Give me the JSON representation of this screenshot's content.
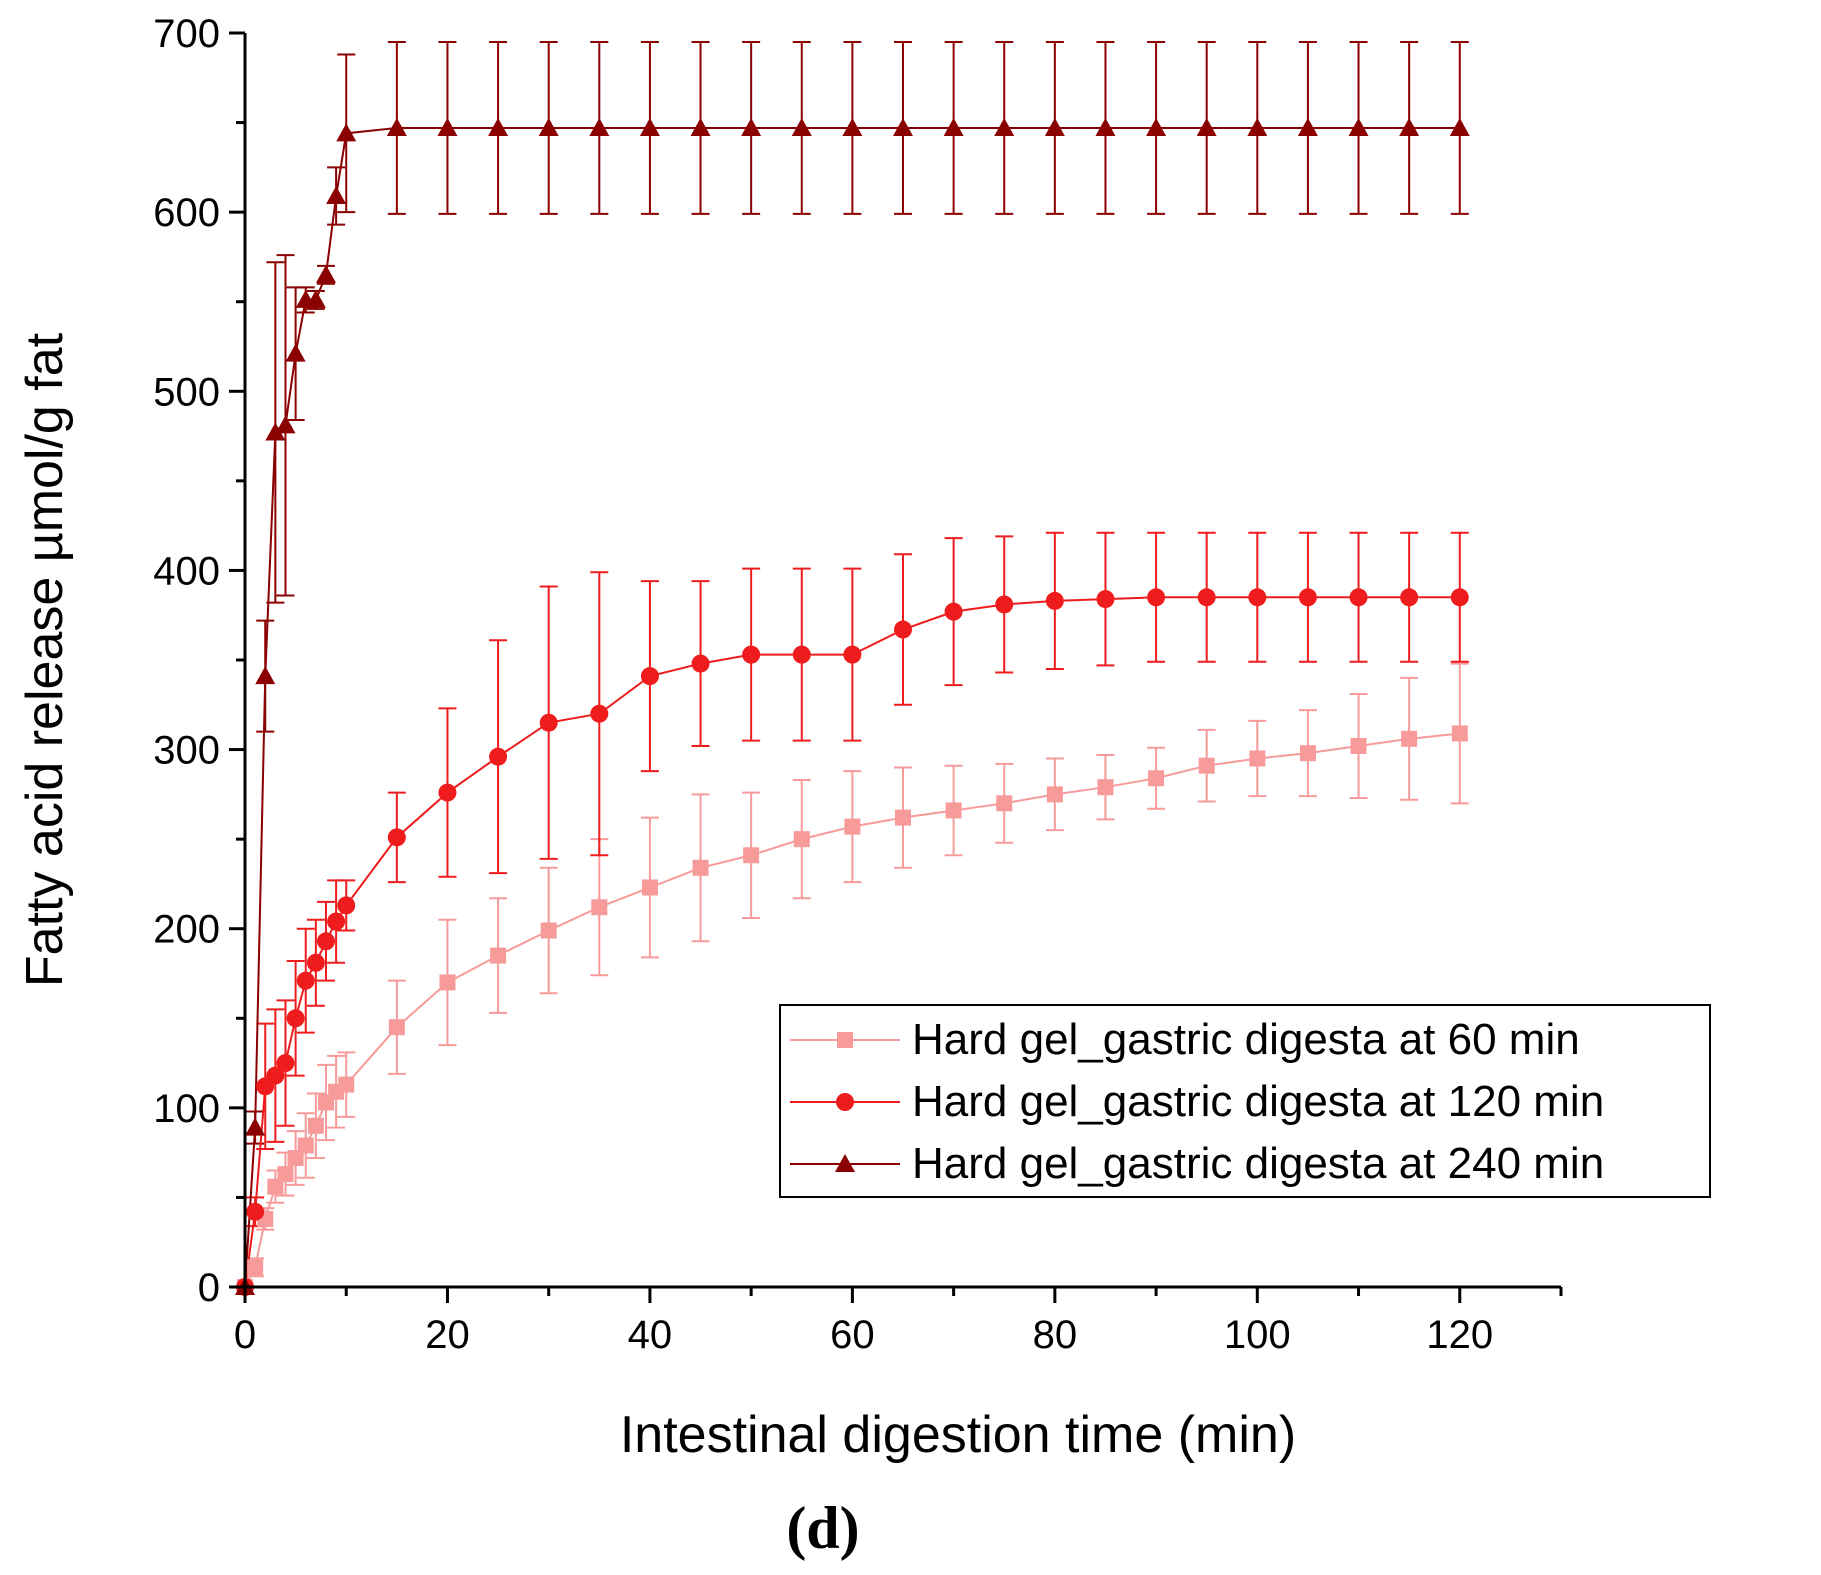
{
  "chart_data": {
    "type": "line",
    "panel_label": "(d)",
    "xlabel": "Intestinal digestion time (min)",
    "ylabel": "Fatty acid release µmol/g fat",
    "xlim": [
      0,
      130
    ],
    "ylim": [
      0,
      700
    ],
    "x_ticks": [
      0,
      20,
      40,
      60,
      80,
      100,
      120
    ],
    "y_ticks": [
      0,
      100,
      200,
      300,
      400,
      500,
      600,
      700
    ],
    "x_tick_labels": [
      "0",
      "20",
      "40",
      "60",
      "80",
      "100",
      "120"
    ],
    "y_tick_labels": [
      "0",
      "100",
      "200",
      "300",
      "400",
      "500",
      "600",
      "700"
    ],
    "grid": false,
    "legend_position": "lower-right",
    "x": [
      0,
      1,
      2,
      3,
      4,
      5,
      6,
      7,
      8,
      9,
      10,
      15,
      20,
      25,
      30,
      35,
      40,
      45,
      50,
      55,
      60,
      65,
      70,
      75,
      80,
      85,
      90,
      95,
      100,
      105,
      110,
      115,
      120
    ],
    "series": [
      {
        "name": "Hard gel_gastric digesta at 60 min",
        "color": "#f79a9a",
        "marker": "square",
        "values": [
          0,
          11,
          38,
          56,
          63,
          72,
          79,
          90,
          103,
          109,
          113,
          145,
          170,
          185,
          199,
          212,
          223,
          234,
          241,
          250,
          257,
          262,
          266,
          270,
          275,
          279,
          284,
          291,
          295,
          298,
          302,
          306,
          309
        ],
        "errors": [
          0,
          5,
          6,
          9,
          12,
          15,
          18,
          18,
          21,
          20,
          18,
          26,
          35,
          32,
          35,
          38,
          39,
          41,
          35,
          33,
          31,
          28,
          25,
          22,
          20,
          18,
          17,
          20,
          21,
          24,
          29,
          34,
          39
        ]
      },
      {
        "name": "Hard gel_gastric digesta at 120 min",
        "color": "#ee1c1c",
        "marker": "circle",
        "values": [
          0,
          42,
          112,
          118,
          125,
          150,
          171,
          181,
          193,
          204,
          213,
          251,
          276,
          296,
          315,
          320,
          341,
          348,
          353,
          353,
          353,
          367,
          377,
          381,
          383,
          384,
          385,
          385,
          385,
          385,
          385,
          385,
          385
        ],
        "errors": [
          0,
          8,
          35,
          37,
          35,
          32,
          29,
          24,
          22,
          23,
          14,
          25,
          47,
          65,
          76,
          79,
          53,
          46,
          48,
          48,
          48,
          42,
          41,
          38,
          38,
          37,
          36,
          36,
          36,
          36,
          36,
          36,
          36
        ]
      },
      {
        "name": "Hard gel_gastric digesta at 240 min",
        "color": "#8b0000",
        "marker": "triangle",
        "values": [
          0,
          89,
          341,
          477,
          481,
          521,
          551,
          551,
          565,
          609,
          644,
          647,
          647,
          647,
          647,
          647,
          647,
          647,
          647,
          647,
          647,
          647,
          647,
          647,
          647,
          647,
          647,
          647,
          647,
          647,
          647,
          647,
          647
        ],
        "errors": [
          0,
          9,
          31,
          95,
          95,
          37,
          7,
          5,
          5,
          16,
          44,
          48,
          48,
          48,
          48,
          48,
          48,
          48,
          48,
          48,
          48,
          48,
          48,
          48,
          48,
          48,
          48,
          48,
          48,
          48,
          48,
          48,
          48
        ]
      }
    ]
  }
}
